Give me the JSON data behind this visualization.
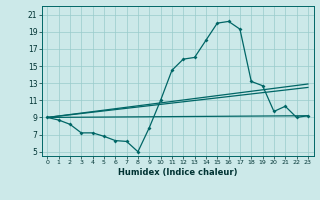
{
  "xlabel": "Humidex (Indice chaleur)",
  "bg_color": "#cce9e9",
  "grid_color": "#99cccc",
  "line_color": "#006666",
  "xlim": [
    -0.5,
    23.5
  ],
  "ylim": [
    4.5,
    22.0
  ],
  "xticks": [
    0,
    1,
    2,
    3,
    4,
    5,
    6,
    7,
    8,
    9,
    10,
    11,
    12,
    13,
    14,
    15,
    16,
    17,
    18,
    19,
    20,
    21,
    22,
    23
  ],
  "yticks": [
    5,
    7,
    9,
    11,
    13,
    15,
    17,
    19,
    21
  ],
  "main_curve": [
    9.0,
    8.7,
    8.2,
    7.2,
    7.2,
    6.8,
    6.3,
    6.2,
    5.0,
    7.8,
    11.0,
    14.5,
    15.8,
    16.0,
    18.0,
    20.0,
    20.2,
    19.3,
    13.2,
    12.7,
    9.7,
    10.3,
    9.0,
    9.2
  ],
  "line2_start": 9.0,
  "line2_end": 9.2,
  "line3_start": 9.0,
  "line3_end": 12.5,
  "line4_start": 9.0,
  "line4_end": 12.9
}
